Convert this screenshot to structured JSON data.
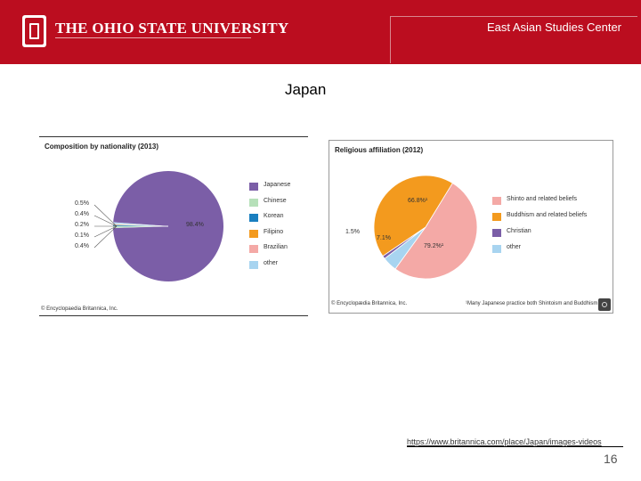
{
  "header": {
    "university": "THE OHIO STATE UNIVERSITY",
    "center_name": "East Asian Studies Center",
    "brand_color": "#bb0d1f",
    "logo_icon": "block-o-logo"
  },
  "slide": {
    "title": "Japan",
    "source": "https://www.britannica.com/place/Japan/images-videos",
    "page_number": "16"
  },
  "chart_data": [
    {
      "type": "pie",
      "title": "Composition by nationality (2013)",
      "credit": "© Encyclopaedia Britannica, Inc.",
      "categories": [
        "Japanese",
        "Chinese",
        "Korean",
        "Filipino",
        "Brazilian",
        "other"
      ],
      "values": [
        98.4,
        0.5,
        0.4,
        0.2,
        0.1,
        0.4
      ],
      "value_labels": [
        "98.4%",
        "0.5%",
        "0.4%",
        "0.2%",
        "0.1%",
        "0.4%"
      ],
      "colors": [
        "#7b5ea7",
        "#b6e0b9",
        "#1a7fbf",
        "#f39a1e",
        "#f4a9a6",
        "#a8d4f0"
      ],
      "legend": "right"
    },
    {
      "type": "pie",
      "title": "Religious affiliation (2012)",
      "credit": "© Encyclopædia Britannica, Inc.",
      "footnote": "¹Many Japanese practice both Shintoism and Buddhism.",
      "categories": [
        "Shinto and related beliefs",
        "Buddhism and related beliefs",
        "Christian",
        "other"
      ],
      "values": [
        79.2,
        66.8,
        1.5,
        7.1
      ],
      "value_labels": [
        "79.2%¹",
        "66.8%¹",
        "1.5%",
        "7.1%"
      ],
      "colors": [
        "#f4a9a6",
        "#f39a1e",
        "#7b5ea7",
        "#a8d4f0"
      ],
      "legend": "right"
    }
  ]
}
